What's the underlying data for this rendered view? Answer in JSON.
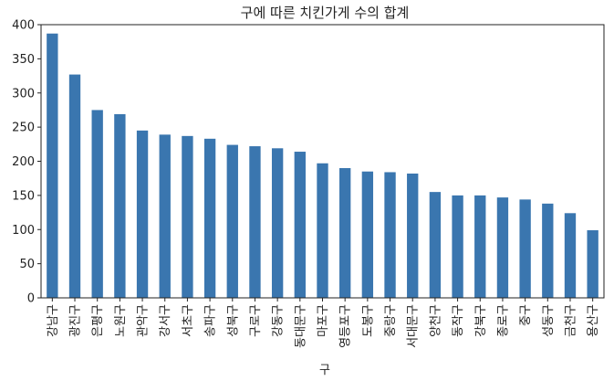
{
  "chart_data": {
    "type": "bar",
    "title": "구에 따른 치킨가게 수의 합계",
    "xlabel": "구",
    "ylabel": "",
    "ylim": [
      0,
      400
    ],
    "yticks": [
      0,
      50,
      100,
      150,
      200,
      250,
      300,
      350,
      400
    ],
    "grid": false,
    "legend": "none",
    "bar_color": "#3a76af",
    "categories": [
      "강남구",
      "광진구",
      "은평구",
      "노원구",
      "관악구",
      "강서구",
      "서초구",
      "송파구",
      "성북구",
      "구로구",
      "강동구",
      "동대문구",
      "마포구",
      "영등포구",
      "도봉구",
      "중랑구",
      "서대문구",
      "양천구",
      "동작구",
      "강북구",
      "종로구",
      "중구",
      "성동구",
      "금천구",
      "용산구"
    ],
    "values": [
      387,
      327,
      275,
      269,
      245,
      239,
      237,
      233,
      224,
      222,
      219,
      214,
      197,
      190,
      185,
      184,
      182,
      155,
      150,
      150,
      147,
      144,
      138,
      124,
      99
    ]
  }
}
